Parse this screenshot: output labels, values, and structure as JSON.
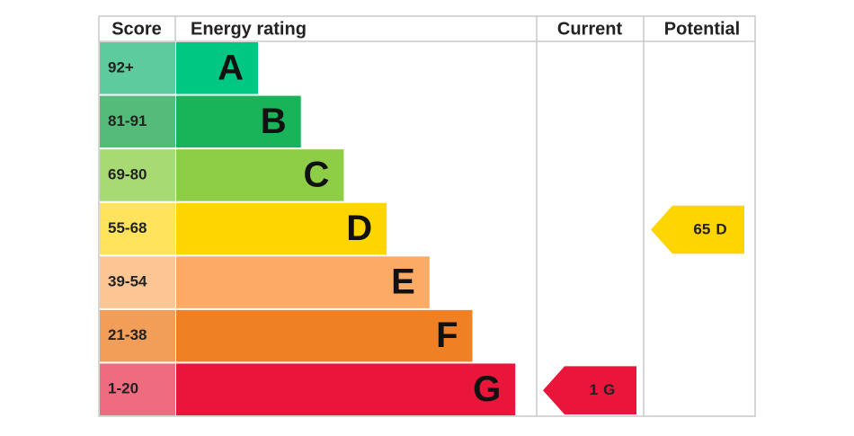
{
  "header": {
    "score": "Score",
    "rating": "Energy rating",
    "current": "Current",
    "potential": "Potential"
  },
  "bands": [
    {
      "score": "92+",
      "letter": "A",
      "color": "#00c781",
      "light": "#5dcb9c"
    },
    {
      "score": "81-91",
      "letter": "B",
      "color": "#19b459",
      "light": "#55bb7a"
    },
    {
      "score": "69-80",
      "letter": "C",
      "color": "#8dce46",
      "light": "#a8da74"
    },
    {
      "score": "55-68",
      "letter": "D",
      "color": "#ffd500",
      "light": "#ffe35c"
    },
    {
      "score": "39-54",
      "letter": "E",
      "color": "#fcaa65",
      "light": "#fcc594"
    },
    {
      "score": "21-38",
      "letter": "F",
      "color": "#ef8023",
      "light": "#f39e58"
    },
    {
      "score": "1-20",
      "letter": "G",
      "color": "#e9153b",
      "light": "#ef6b80"
    }
  ],
  "current": {
    "score": 1,
    "rating": "G"
  },
  "potential": {
    "score": 65,
    "rating": "D"
  }
}
